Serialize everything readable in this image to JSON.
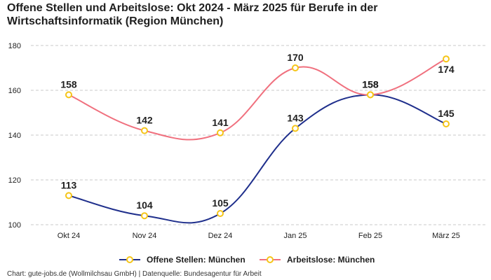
{
  "page": {
    "title": "Offene Stellen und Arbeitslose: Okt 2024 - März 2025 für Berufe in der Wirtschaftsinformatik (Region München)",
    "footer": "Chart: gute-jobs.de (Wollmilchsau GmbH) | Datenquelle: Bundesagentur für Arbeit"
  },
  "chart_data": {
    "type": "line",
    "title": "Offene Stellen und Arbeitslose: Okt 2024 - März 2025 für Berufe in der Wirtschaftsinformatik (Region München)",
    "xlabel": "",
    "ylabel": "",
    "categories": [
      "Okt 24",
      "Nov 24",
      "Dez 24",
      "Jan 25",
      "Feb 25",
      "März 25"
    ],
    "ylim": [
      100,
      180
    ],
    "yticks": [
      100,
      120,
      140,
      160,
      180
    ],
    "grid": true,
    "legend": "bottom",
    "marker_color": "#f5c518",
    "series": [
      {
        "name": "Offene Stellen: München",
        "color": "#1f2f8c",
        "values": [
          113,
          104,
          105,
          143,
          158,
          145
        ]
      },
      {
        "name": "Arbeitslose: München",
        "color": "#f0707e",
        "values": [
          158,
          142,
          141,
          170,
          158,
          174
        ]
      }
    ]
  }
}
